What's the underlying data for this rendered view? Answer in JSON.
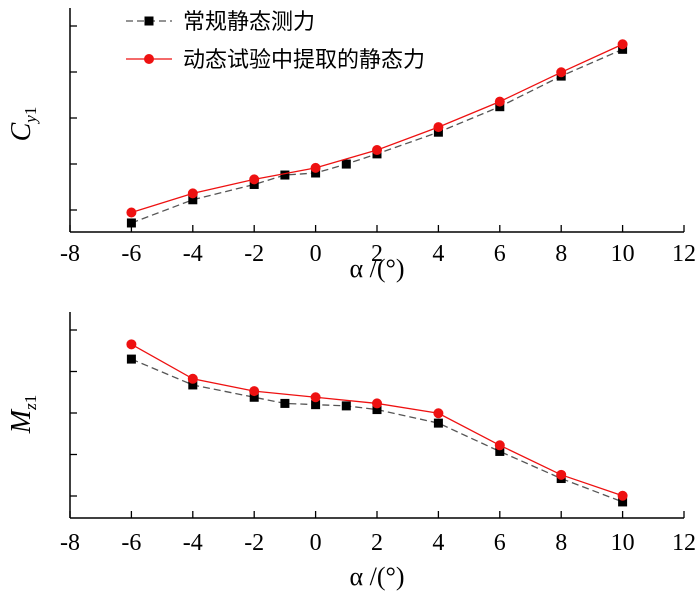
{
  "chart_data": [
    {
      "type": "line",
      "ylabel": {
        "main": "C",
        "sub_letter": "y",
        "sub_number": "1"
      },
      "xlabel": "α /(°)",
      "xlim": [
        -8,
        12
      ],
      "x_ticks": [
        "-8",
        "-6",
        "-4",
        "-2",
        "0",
        "2",
        "4",
        "6",
        "8",
        "10",
        "12"
      ],
      "y_ticks_labeled": false,
      "ylim": [
        0,
        8
      ],
      "legend": {
        "placement": "top-left",
        "entries": [
          "常规静态测力",
          "动态试验中提取的静态力"
        ]
      },
      "series": [
        {
          "name": "常规静态测力",
          "color": "#000000",
          "line_color": "#555555",
          "marker": "square",
          "x": [
            -6,
            -4,
            -2,
            -1,
            0,
            1,
            2,
            4,
            6,
            8,
            10
          ],
          "values": [
            0.04,
            0.95,
            1.55,
            1.92,
            2.0,
            2.35,
            2.75,
            3.6,
            4.6,
            5.8,
            6.85
          ]
        },
        {
          "name": "动态试验中提取的静态力",
          "color": "#ee1111",
          "line_color": "#ee1111",
          "marker": "circle",
          "x": [
            -6,
            -4,
            -2,
            0,
            2,
            4,
            6,
            8,
            10
          ],
          "values": [
            0.45,
            1.2,
            1.75,
            2.2,
            2.9,
            3.8,
            4.8,
            5.95,
            7.05
          ]
        }
      ]
    },
    {
      "type": "line",
      "ylabel": {
        "main": "M",
        "sub_letter": "z",
        "sub_number": "1"
      },
      "xlabel": "α /(°)",
      "xlim": [
        -8,
        12
      ],
      "x_ticks": [
        "-8",
        "-6",
        "-4",
        "-2",
        "0",
        "2",
        "4",
        "6",
        "8",
        "10",
        "12"
      ],
      "y_ticks_labeled": false,
      "ylim": [
        0,
        8
      ],
      "series": [
        {
          "name": "常规静态测力",
          "color": "#000000",
          "line_color": "#555555",
          "marker": "square",
          "x": [
            -6,
            -4,
            -2,
            -1,
            0,
            1,
            2,
            4,
            6,
            8,
            10
          ],
          "values": [
            6.25,
            5.2,
            4.7,
            4.45,
            4.4,
            4.35,
            4.2,
            3.65,
            2.5,
            1.4,
            0.45
          ]
        },
        {
          "name": "动态试验中提取的静态力",
          "color": "#ee1111",
          "line_color": "#ee1111",
          "marker": "circle",
          "x": [
            -6,
            -4,
            -2,
            0,
            2,
            4,
            6,
            8,
            10
          ],
          "values": [
            6.85,
            5.45,
            4.95,
            4.7,
            4.45,
            4.05,
            2.75,
            1.55,
            0.7
          ]
        }
      ]
    }
  ]
}
